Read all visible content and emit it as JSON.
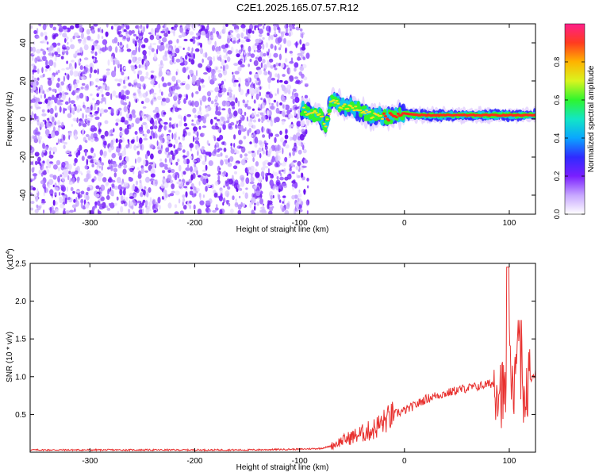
{
  "title": "C2E1.2025.165.07.57.R12",
  "chart_data": [
    {
      "type": "heatmap",
      "title": "C2E1.2025.165.07.57.R12",
      "xlabel": "Height of straight line (km)",
      "ylabel": "Frequency (Hz)",
      "xlim": [
        -357,
        125
      ],
      "ylim": [
        -50,
        50
      ],
      "xticks": [
        -300,
        -200,
        -100,
        0,
        100
      ],
      "yticks": [
        -40,
        -20,
        0,
        20,
        40
      ],
      "colorbar": {
        "label": "Normalized spectral amplitude",
        "range": [
          0,
          1
        ],
        "ticks": [
          "0.0",
          "0.2",
          "0.4",
          "0.6",
          "0.8"
        ]
      },
      "regions": [
        {
          "x": [
            -357,
            -92
          ],
          "y": [
            -50,
            50
          ],
          "description": "scattered low-amplitude speckle (white to violet)"
        },
        {
          "x": [
            -100,
            125
          ],
          "y": [
            -10,
            13
          ],
          "description": "coherent signal band near 0-5 Hz with peak amplitude (red) along ~2 Hz from 0 to 120 km"
        }
      ],
      "signal_track": {
        "x": [
          -98,
          -90,
          -80,
          -75,
          -70,
          -60,
          -50,
          -40,
          -30,
          -20,
          -10,
          0,
          10,
          20,
          40,
          60,
          80,
          100,
          120
        ],
        "y": [
          5,
          3,
          2,
          -4,
          10,
          7,
          6,
          4,
          2,
          1,
          1.5,
          3,
          2,
          2,
          2,
          2,
          2,
          2,
          2
        ]
      }
    },
    {
      "type": "line",
      "xlabel": "Height of straight line (km)",
      "ylabel": "SNR (10 * v/v)",
      "yscale_label": "(x10",
      "yscale_exp": "4",
      "xlim": [
        -357,
        125
      ],
      "ylim": [
        0,
        2.5
      ],
      "xticks": [
        -300,
        -200,
        -100,
        0,
        100
      ],
      "yticks": [
        0.5,
        1.0,
        1.5,
        2.0,
        2.5
      ],
      "color": "#e8312f",
      "series": [
        {
          "x": [
            -357,
            -300,
            -250,
            -200,
            -150,
            -100,
            -80,
            -70,
            -60,
            -50,
            -40,
            -30,
            -20,
            -10,
            0,
            10,
            20,
            30,
            40,
            50,
            60,
            70,
            80,
            90,
            95,
            100,
            105,
            110,
            115,
            120,
            125
          ],
          "y": [
            0.03,
            0.03,
            0.03,
            0.03,
            0.03,
            0.04,
            0.05,
            0.08,
            0.15,
            0.2,
            0.25,
            0.3,
            0.4,
            0.5,
            0.55,
            0.62,
            0.7,
            0.75,
            0.78,
            0.82,
            0.85,
            0.87,
            0.9,
            0.93,
            0.7,
            1.2,
            0.9,
            1.3,
            0.8,
            0.97,
            1.05
          ]
        }
      ]
    }
  ]
}
